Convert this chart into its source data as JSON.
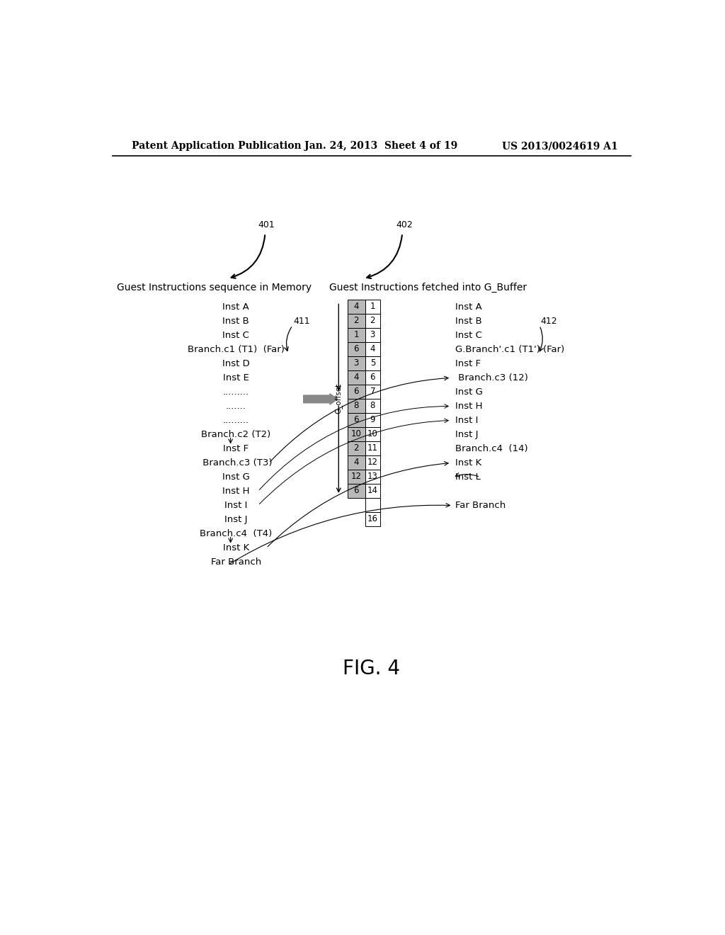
{
  "header_left": "Patent Application Publication",
  "header_mid": "Jan. 24, 2013  Sheet 4 of 19",
  "header_right": "US 2013/0024619 A1",
  "fig_label": "FIG. 4",
  "label_401": "401",
  "label_402": "402",
  "label_411": "411",
  "label_412": "412",
  "title_left": "Guest Instructions sequence in Memory",
  "title_right": "Guest Instructions fetched into G_Buffer",
  "g_offset_label": "G_offset",
  "left_instructions": [
    "Inst A",
    "Inst B",
    "Inst C",
    "Branch.c1 (T1)  (Far)",
    "Inst D",
    "Inst E",
    ".........",
    ".......",
    ".........",
    "Branch.c2 (T2)",
    "Inst F",
    " Branch.c3 (T3)",
    "Inst G",
    "Inst H",
    "Inst I",
    "Inst J",
    "Branch.c4  (T4)",
    "Inst K",
    "Far Branch"
  ],
  "table_col1": [
    "4",
    "2",
    "1",
    "6",
    "3",
    "4",
    "6",
    "8",
    "6",
    "10",
    "2",
    "4",
    "12",
    "6"
  ],
  "table_col2": [
    "1",
    "2",
    "3",
    "4",
    "5",
    "6",
    "7",
    "8",
    "9",
    "10",
    "11",
    "12",
    "13",
    "14"
  ],
  "right_instructions": [
    "Inst A",
    "Inst B",
    "Inst C",
    "G.Branch'.c1 (T1') (Far)",
    "Inst F",
    " Branch.c3 (12)",
    "Inst G",
    "Inst H",
    "Inst I",
    "Inst J",
    "Branch.c4  (14)",
    "Inst K",
    "Inst L",
    "",
    "Far Branch"
  ],
  "background_color": "#ffffff",
  "table_col1_bg": "#b8b8b8",
  "table_border": "#000000"
}
